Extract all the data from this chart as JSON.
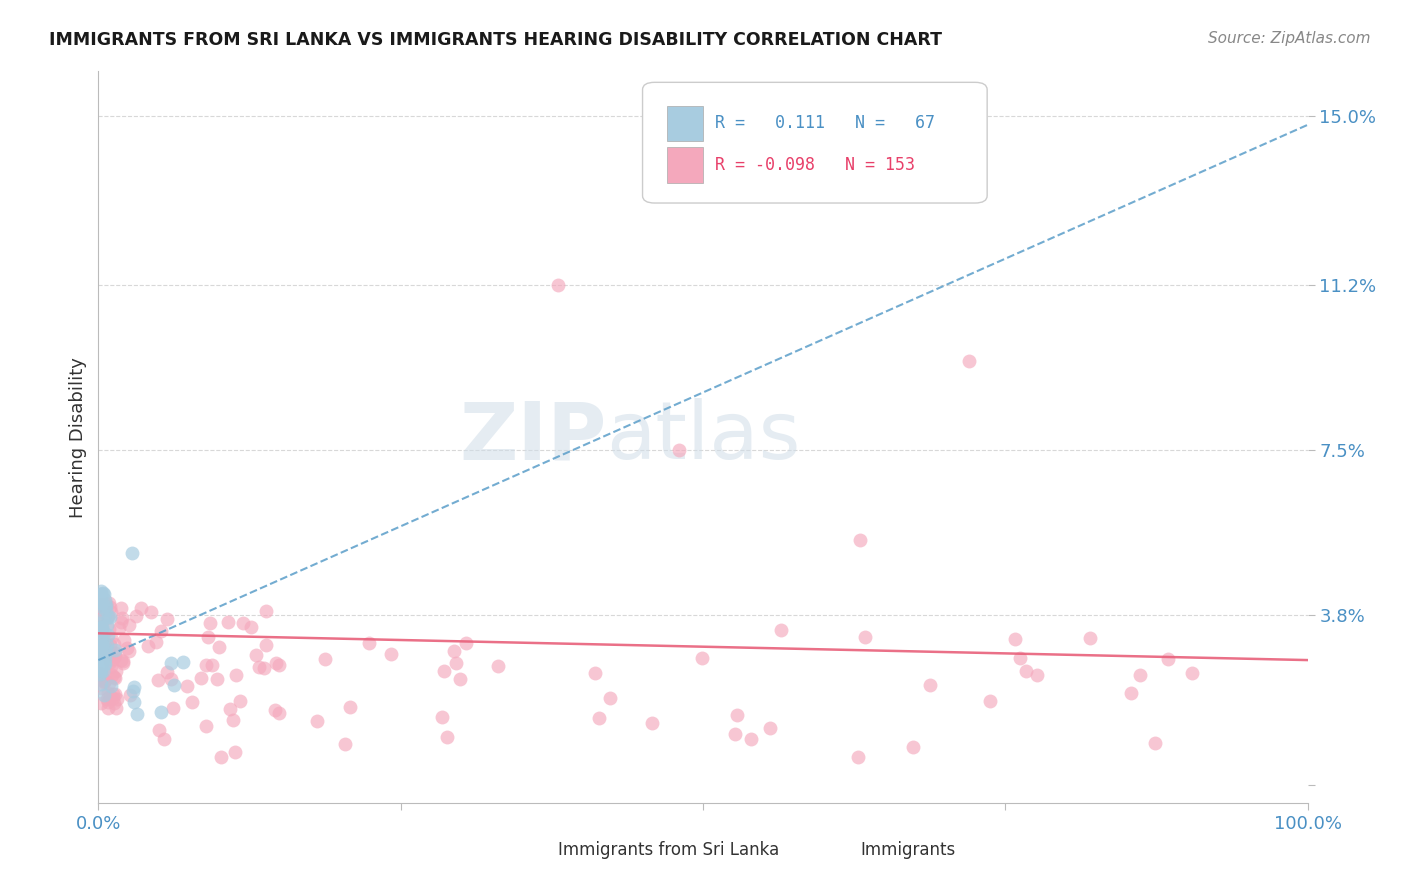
{
  "title": "IMMIGRANTS FROM SRI LANKA VS IMMIGRANTS HEARING DISABILITY CORRELATION CHART",
  "source": "Source: ZipAtlas.com",
  "ylabel": "Hearing Disability",
  "ytick_values": [
    0.0,
    0.038,
    0.075,
    0.112,
    0.15
  ],
  "ytick_labels": [
    "",
    "3.8%",
    "7.5%",
    "11.2%",
    "15.0%"
  ],
  "blue_color": "#a8cce0",
  "pink_color": "#f4a8bc",
  "blue_line_color": "#5b9ec9",
  "pink_line_color": "#e8607a",
  "axis_label_color": "#4a90c4",
  "title_color": "#1a1a1a",
  "background_color": "#ffffff",
  "grid_color": "#d8d8d8",
  "watermark_color": "#d0dde8",
  "legend_r1_color": "#4a90c4",
  "legend_r2_color": "#e8406a",
  "ylim_min": -0.004,
  "ylim_max": 0.16,
  "xlim_min": 0.0,
  "xlim_max": 1.0
}
